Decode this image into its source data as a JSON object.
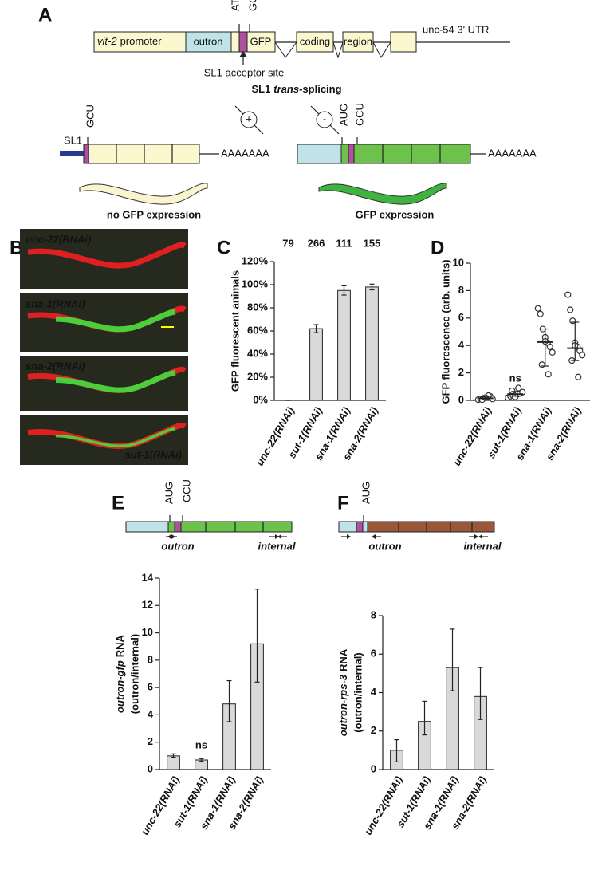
{
  "panel_a": {
    "label": "A",
    "construct": {
      "promoter_gene": "vit-2",
      "promoter": "promoter",
      "outron": "outron",
      "atg": "ATG",
      "gct": "GCT",
      "gfp": "GFP",
      "coding": "coding",
      "region": "region",
      "utr": "unc-54 3' UTR",
      "acceptor": "SL1 acceptor site"
    },
    "splicing": {
      "prefix": "SL1",
      "emph": "trans",
      "suffix": "-splicing",
      "plus": "+",
      "minus": "-"
    },
    "left_mrna": {
      "sl1": "SL1",
      "gcu": "GCU",
      "polya": "AAAAAAA",
      "caption": "no GFP expression"
    },
    "right_mrna": {
      "aug": "AUG",
      "gcu": "GCU",
      "polya": "AAAAAAA",
      "caption": "GFP expression"
    }
  },
  "panel_b": {
    "label": "B",
    "images": [
      "unc-22(RNAi)",
      "sna-1(RNAi)",
      "sna-2(RNAi)",
      "sut-1(RNAi)"
    ]
  },
  "chart_data": [
    {
      "label": "C",
      "type": "bar",
      "ylabel": "GFP fluorescent animals",
      "categories": [
        "unc-22(RNAi)",
        "sut-1(RNAi)",
        "sna-1(RNAi)",
        "sna-2(RNAi)"
      ],
      "values": [
        0,
        62,
        95,
        98
      ],
      "error_low": [
        0,
        58.5,
        91,
        95.5
      ],
      "error_high": [
        0,
        65.5,
        99,
        100.5
      ],
      "n_labels": [
        79,
        266,
        111,
        155
      ],
      "color": "#d9d9d9",
      "ylim": [
        0,
        120
      ],
      "yticks": [
        {
          "value": 0,
          "label": "0%"
        },
        {
          "value": 20,
          "label": "20%"
        },
        {
          "value": 40,
          "label": "40%"
        },
        {
          "value": 60,
          "label": "60%"
        },
        {
          "value": 80,
          "label": "80%"
        },
        {
          "value": 100,
          "label": "100%"
        },
        {
          "value": 120,
          "label": "120%"
        }
      ]
    },
    {
      "label": "D",
      "type": "dot",
      "ylabel": "GFP fluorescence (arb. units)",
      "categories": [
        "unc-22(RNAi)",
        "sut-1(RNAi)",
        "sna-1(RNAi)",
        "sna-2(RNAi)"
      ],
      "points": [
        [
          0.05,
          0.1,
          0.15,
          0.2,
          0.25,
          0.3,
          0.1,
          0.05,
          0.35,
          0.2
        ],
        [
          0.2,
          0.3,
          0.35,
          0.4,
          0.45,
          0.5,
          0.6,
          0.7,
          0.9,
          0.25
        ],
        [
          6.7,
          6.3,
          5.2,
          4.6,
          4.2,
          3.9,
          3.5,
          2.6,
          1.9,
          4.3
        ],
        [
          7.7,
          6.6,
          5.8,
          4.2,
          3.9,
          3.6,
          3.3,
          2.9,
          1.7,
          4.0
        ]
      ],
      "centers": [
        0.15,
        0.45,
        4.25,
        3.8
      ],
      "lower": [
        0.05,
        0.3,
        2.5,
        2.9
      ],
      "upper": [
        0.25,
        0.65,
        5.2,
        5.7
      ],
      "annotation": "ns",
      "annotation_category": "sut-1(RNAi)",
      "ylim": [
        0,
        10
      ],
      "yticks": [
        0,
        2,
        4,
        6,
        8,
        10
      ]
    },
    {
      "label": "E",
      "type": "bar",
      "diagram": {
        "aug": "AUG",
        "gcu": "GCU",
        "primer1": "outron",
        "primer2": "internal"
      },
      "ylabel": {
        "gene": "outron-gfp",
        "unit": "RNA",
        "ratio": "(outron/internal)"
      },
      "categories": [
        "unc-22(RNAi)",
        "sut-1(RNAi)",
        "sna-1(RNAi)",
        "sna-2(RNAi)"
      ],
      "values": [
        1.0,
        0.7,
        4.8,
        9.2
      ],
      "error_low": [
        0.9,
        0.6,
        3.5,
        6.4
      ],
      "error_high": [
        1.15,
        0.8,
        6.5,
        13.2
      ],
      "annotation": "ns",
      "annotation_category": "sut-1(RNAi)",
      "color": "#d9d9d9",
      "ylim": [
        0,
        14
      ],
      "yticks": [
        0,
        2,
        4,
        6,
        8,
        10,
        12,
        14
      ]
    },
    {
      "label": "F",
      "type": "bar",
      "diagram": {
        "aug": "AUG",
        "primer1": "outron",
        "primer2": "internal"
      },
      "ylabel": {
        "gene": "outron-rps-3",
        "unit": "RNA",
        "ratio": "(outron/internal)"
      },
      "categories": [
        "unc-22(RNAi)",
        "sut-1(RNAi)",
        "sna-1(RNAi)",
        "sna-2(RNAi)"
      ],
      "values": [
        1.0,
        2.5,
        5.3,
        3.8
      ],
      "error_low": [
        0.4,
        1.8,
        4.1,
        2.6
      ],
      "error_high": [
        1.55,
        3.55,
        7.3,
        5.3
      ],
      "color": "#d9d9d9",
      "ylim": [
        0,
        8
      ],
      "yticks": [
        0,
        2,
        4,
        6,
        8
      ]
    }
  ]
}
